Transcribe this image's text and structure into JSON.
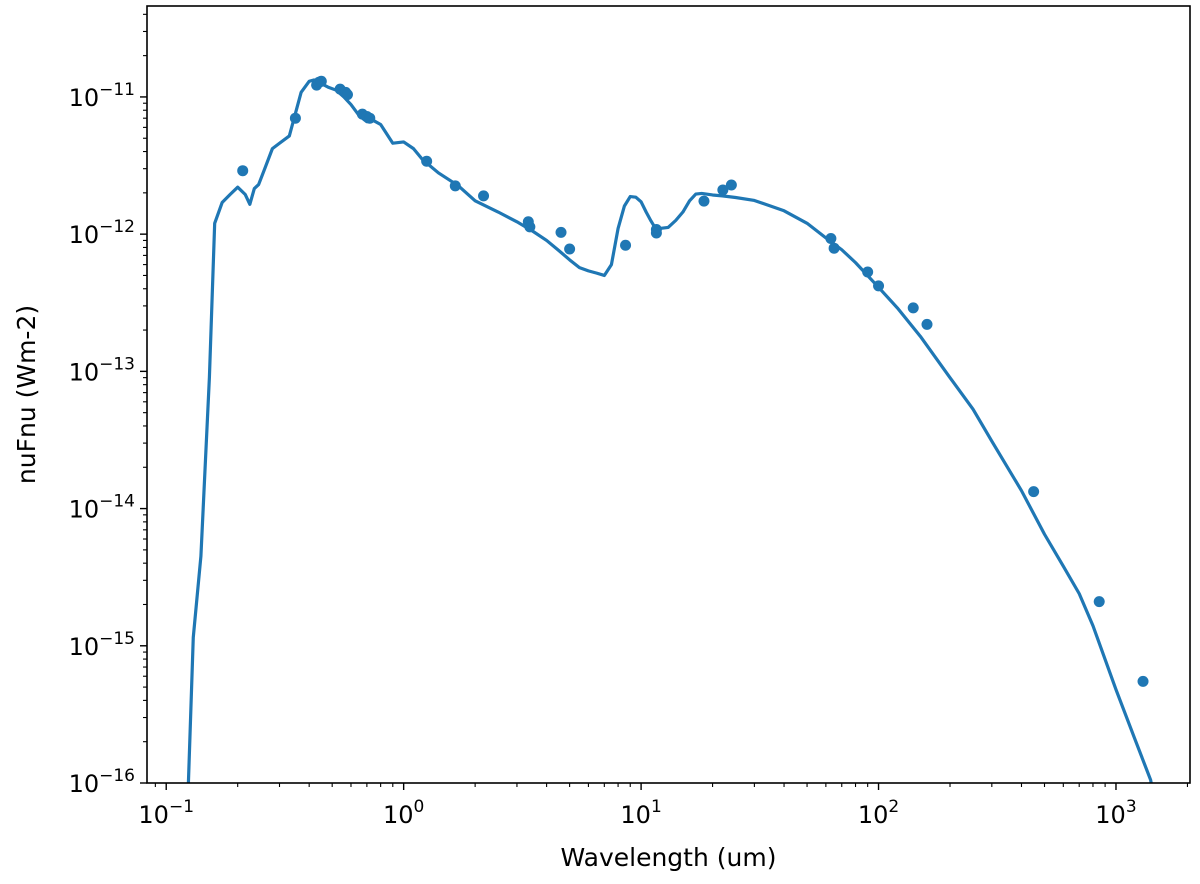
{
  "chart_data": {
    "type": "line",
    "title": "",
    "xlabel": "Wavelength (um)",
    "ylabel": "nuFnu (Wm-2)",
    "xscale": "log",
    "yscale": "log",
    "xlim": [
      0.083,
      2050
    ],
    "ylim": [
      1e-16,
      4.6e-11
    ],
    "grid": false,
    "legend": "none",
    "color": "#1f77b4",
    "x_ticks": [
      {
        "value": 0.1,
        "base": "10",
        "exp": "−1"
      },
      {
        "value": 1,
        "base": "10",
        "exp": "0"
      },
      {
        "value": 10,
        "base": "10",
        "exp": "1"
      },
      {
        "value": 100,
        "base": "10",
        "exp": "2"
      },
      {
        "value": 1000,
        "base": "10",
        "exp": "3"
      }
    ],
    "y_ticks": [
      {
        "value": 1e-16,
        "base": "10",
        "exp": "−16"
      },
      {
        "value": 1e-15,
        "base": "10",
        "exp": "−15"
      },
      {
        "value": 1e-14,
        "base": "10",
        "exp": "−14"
      },
      {
        "value": 1e-13,
        "base": "10",
        "exp": "−13"
      },
      {
        "value": 1e-12,
        "base": "10",
        "exp": "−12"
      },
      {
        "value": 1e-11,
        "base": "10",
        "exp": "−11"
      }
    ],
    "series": [
      {
        "kind": "line",
        "x": [
          0.124,
          0.13,
          0.14,
          0.152,
          0.16,
          0.172,
          0.186,
          0.2,
          0.215,
          0.225,
          0.235,
          0.245,
          0.26,
          0.28,
          0.3,
          0.33,
          0.37,
          0.4,
          0.42,
          0.45,
          0.48,
          0.52,
          0.56,
          0.6,
          0.65,
          0.7,
          0.75,
          0.8,
          0.9,
          1.0,
          1.1,
          1.2,
          1.4,
          1.7,
          2.0,
          2.5,
          3.0,
          3.5,
          4.0,
          4.5,
          5.0,
          5.5,
          6.0,
          6.5,
          7.0,
          7.5,
          8.0,
          8.5,
          9.0,
          9.5,
          10.0,
          10.5,
          11.0,
          11.5,
          12.0,
          13.0,
          14.0,
          15.0,
          16.0,
          17.0,
          18.0,
          20.0,
          22.0,
          25.0,
          30.0,
          40.0,
          50.0,
          60.0,
          70.0,
          80.0,
          100.0,
          120.0,
          150.0,
          200.0,
          250.0,
          300.0,
          400.0,
          500.0,
          600.0,
          700.0,
          800.0,
          1000.0,
          1200.0,
          1400.0,
          1560.0
        ],
        "y": [
          1e-16,
          1.15e-15,
          4.5e-15,
          9e-14,
          1.2e-12,
          1.7e-12,
          1.95e-12,
          2.2e-12,
          1.95e-12,
          1.65e-12,
          2.15e-12,
          2.3e-12,
          3e-12,
          4.2e-12,
          4.6e-12,
          5.2e-12,
          1.08e-11,
          1.3e-11,
          1.33e-11,
          1.25e-11,
          1.18e-11,
          1.12e-11,
          1e-11,
          8.8e-12,
          7.3e-12,
          6.6e-12,
          6.7e-12,
          6.3e-12,
          4.6e-12,
          4.7e-12,
          4.2e-12,
          3.5e-12,
          2.8e-12,
          2.25e-12,
          1.75e-12,
          1.45e-12,
          1.23e-12,
          1.05e-12,
          9e-13,
          7.6e-13,
          6.5e-13,
          5.7e-13,
          5.4e-13,
          5.2e-13,
          5e-13,
          6e-13,
          1.1e-12,
          1.6e-12,
          1.88e-12,
          1.86e-12,
          1.72e-12,
          1.45e-12,
          1.25e-12,
          1.1e-12,
          1.1e-12,
          1.12e-12,
          1.26e-12,
          1.45e-12,
          1.75e-12,
          1.96e-12,
          1.98e-12,
          1.93e-12,
          1.9e-12,
          1.85e-12,
          1.76e-12,
          1.48e-12,
          1.2e-12,
          9.4e-13,
          7.7e-13,
          6.2e-13,
          4.1e-13,
          2.9e-13,
          1.8e-13,
          9e-14,
          5.3e-14,
          3.1e-14,
          1.35e-14,
          6.5e-15,
          3.8e-15,
          2.4e-15,
          1.4e-15,
          4.8e-16,
          2.1e-16,
          1.05e-16,
          3.5e-17
        ]
      },
      {
        "kind": "scatter",
        "x": [
          0.21,
          0.35,
          0.43,
          0.44,
          0.45,
          0.54,
          0.57,
          0.58,
          0.67,
          0.7,
          0.72,
          1.25,
          1.65,
          2.17,
          3.35,
          3.4,
          4.6,
          5.0,
          8.6,
          11.6,
          11.6,
          18.4,
          22.1,
          24.0,
          63,
          65,
          90,
          100,
          140,
          160,
          450,
          850,
          1300
        ],
        "y": [
          2.9e-12,
          7e-12,
          1.22e-11,
          1.28e-11,
          1.3e-11,
          1.14e-11,
          1.08e-11,
          1.04e-11,
          7.5e-12,
          7.2e-12,
          7e-12,
          3.4e-12,
          2.25e-12,
          1.9e-12,
          1.23e-12,
          1.13e-12,
          1.03e-12,
          7.8e-13,
          8.3e-13,
          1.08e-12,
          1.02e-12,
          1.74e-12,
          2.1e-12,
          2.28e-12,
          9.3e-13,
          7.9e-13,
          5.3e-13,
          4.2e-13,
          2.9e-13,
          2.2e-13,
          1.33e-14,
          2.1e-15,
          5.5e-16
        ]
      }
    ]
  }
}
